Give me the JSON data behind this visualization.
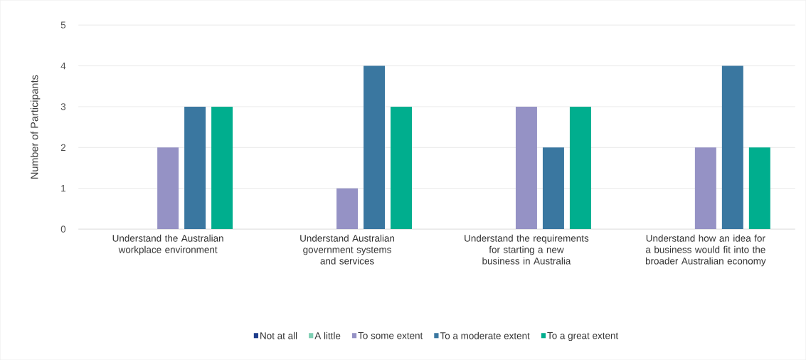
{
  "chart_data": {
    "type": "bar",
    "ylabel": "Number of Participants",
    "categories": [
      "Understand the Australian workplace environment",
      "Understand Australian government systems and services",
      "Understand the requirements for starting a new business in Australia",
      "Understand how an idea for a business would fit into the broader Australian economy"
    ],
    "series": [
      {
        "name": "Not at all",
        "color": "#1f3e8c",
        "values": [
          0,
          0,
          0,
          0
        ]
      },
      {
        "name": "A little",
        "color": "#7fcfb4",
        "values": [
          0,
          0,
          0,
          0
        ]
      },
      {
        "name": "To some extent",
        "color": "#9592c5",
        "values": [
          2,
          1,
          3,
          2
        ]
      },
      {
        "name": "To a moderate extent",
        "color": "#3a77a0",
        "values": [
          3,
          4,
          2,
          4
        ]
      },
      {
        "name": "To a great extent",
        "color": "#00ae8e",
        "values": [
          3,
          3,
          3,
          2
        ]
      }
    ],
    "ylim": [
      0,
      5
    ],
    "yticks": [
      0,
      1,
      2,
      3,
      4,
      5
    ],
    "grid": "y",
    "legend": "bottom"
  }
}
